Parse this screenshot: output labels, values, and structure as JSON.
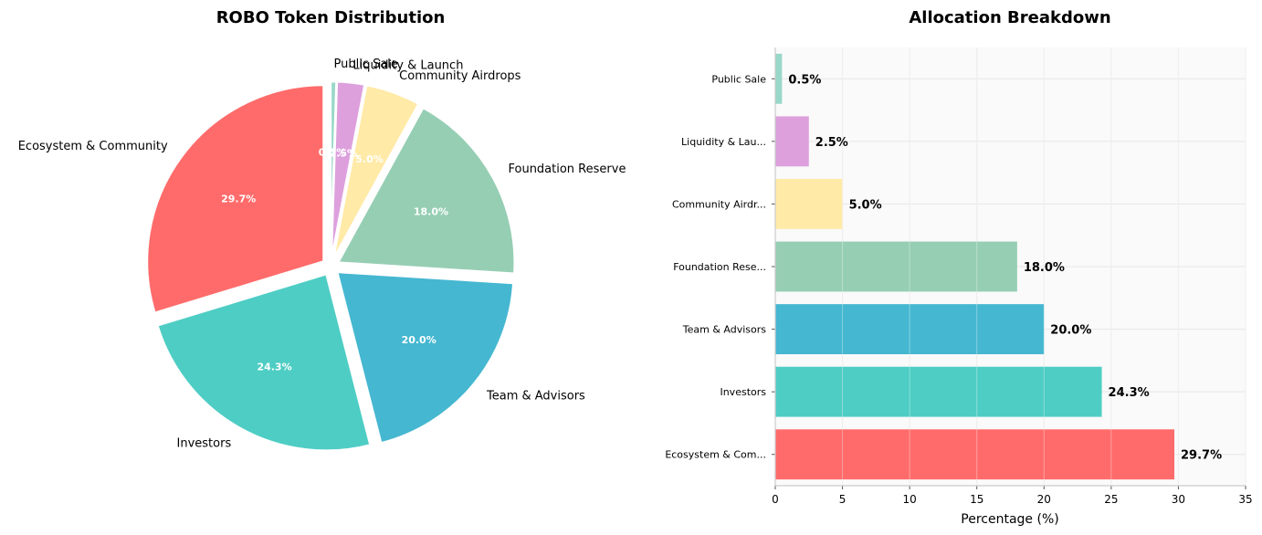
{
  "chart_data": [
    {
      "type": "pie",
      "title": "ROBO Token Distribution",
      "labels": [
        "Ecosystem & Community",
        "Investors",
        "Team & Advisors",
        "Foundation Reserve",
        "Community Airdrops",
        "Liquidity & Launch",
        "Public Sale"
      ],
      "values": [
        29.7,
        24.3,
        20.0,
        18.0,
        5.0,
        2.5,
        0.5
      ],
      "pct_labels": [
        "29.7%",
        "24.3%",
        "20.0%",
        "18.0%",
        "5.0%",
        "2.5%",
        "0.5%"
      ],
      "colors": [
        "#FF6B6B",
        "#4ECDC4",
        "#45B7D1",
        "#96CEB4",
        "#FFEAA7",
        "#DDA0DD",
        "#98D8C8"
      ],
      "start_angle": 90,
      "direction": "counterclockwise",
      "exploded": true
    },
    {
      "type": "bar",
      "orientation": "horizontal",
      "title": "Allocation Breakdown",
      "categories": [
        "Ecosystem & Com...",
        "Investors",
        "Team & Advisors",
        "Foundation Rese...",
        "Community Airdr...",
        "Liquidity & Lau...",
        "Public Sale"
      ],
      "values": [
        29.7,
        24.3,
        20.0,
        18.0,
        5.0,
        2.5,
        0.5
      ],
      "value_labels": [
        "29.7%",
        "24.3%",
        "20.0%",
        "18.0%",
        "5.0%",
        "2.5%",
        "0.5%"
      ],
      "colors": [
        "#FF6B6B",
        "#4ECDC4",
        "#45B7D1",
        "#96CEB4",
        "#FFEAA7",
        "#DDA0DD",
        "#98D8C8"
      ],
      "xlabel": "Percentage (%)",
      "xlim": [
        0,
        35
      ],
      "xticks": [
        0,
        5,
        10,
        15,
        20,
        25,
        30,
        35
      ],
      "grid": true
    }
  ]
}
